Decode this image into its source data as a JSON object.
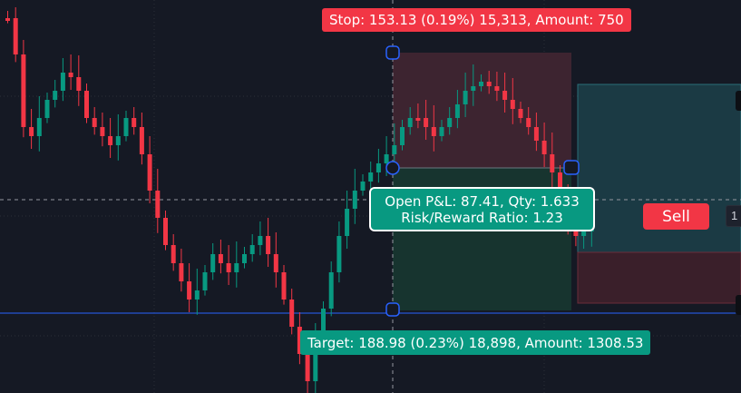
{
  "stop_label": "Stop: 153.13 (0.19%) 15,313, Amount: 750",
  "target_label": "Target: 188.98 (0.23%) 18,898, Amount: 1308.53",
  "position_info": {
    "line1": "Open P&L: 87.41, Qty: 1.633",
    "line2": "Risk/Reward Ratio: 1.23"
  },
  "sell_button_label": "Sell",
  "price_tag_partial": "1",
  "colors": {
    "background": "#151924",
    "up_candle": "#089981",
    "down_candle": "#f23645",
    "stop_zone": "rgba(242,54,69,0.20)",
    "target_zone": "rgba(8,153,129,0.20)",
    "second_position_zone": "#1b3a44",
    "handle_border": "#2962ff",
    "blue_line": "#2962ff"
  },
  "icons": [
    "drag-handle-icon",
    "resize-handle-icon"
  ]
}
